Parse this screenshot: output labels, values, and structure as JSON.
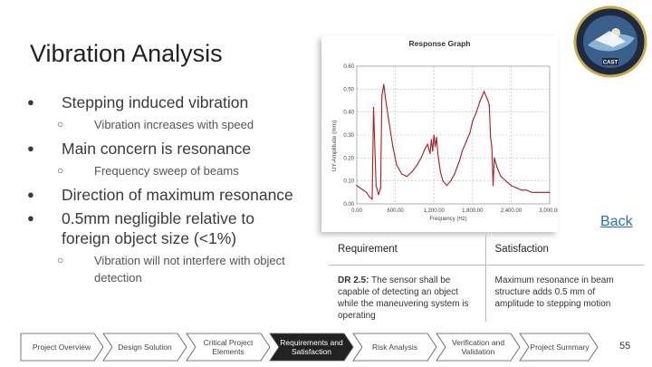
{
  "title": "Vibration Analysis",
  "bullets": [
    {
      "text": "Stepping induced vibration",
      "sub": [
        "Vibration increases with speed"
      ]
    },
    {
      "text": "Main concern is resonance",
      "sub": [
        "Frequency sweep of beams"
      ]
    },
    {
      "text": "Direction of maximum resonance",
      "sub": []
    },
    {
      "text": "0.5mm negligible relative to foreign object size (<1%)",
      "sub": [
        "Vibration will not interfere with object detection"
      ]
    }
  ],
  "chart": {
    "title": "Response Graph",
    "ylabel": "UY-Amplitude (mm)",
    "xlabel": "Frequency (Hz)",
    "yticks": [
      "0.60",
      "0.50",
      "0.40",
      "0.30",
      "0.20",
      "0.10",
      "0.00"
    ],
    "xticks": [
      "0.00",
      "600.00",
      "1,200.00",
      "1,800.00",
      "2,400.00",
      "3,000.00"
    ]
  },
  "chart_data": {
    "type": "line",
    "title": "Response Graph",
    "xlabel": "Frequency (Hz)",
    "ylabel": "UY-Amplitude (mm)",
    "xlim": [
      0,
      3000
    ],
    "ylim": [
      0,
      0.6
    ],
    "grid": true,
    "color": "#b01a1a",
    "series": [
      {
        "x": [
          0,
          50,
          100,
          150,
          200,
          240,
          260,
          300,
          340,
          370,
          390,
          420,
          450,
          500,
          560,
          620,
          700,
          780,
          860,
          940,
          1000,
          1060,
          1100,
          1140,
          1160,
          1180,
          1200,
          1220,
          1240,
          1260,
          1280,
          1300,
          1340,
          1400,
          1460,
          1520,
          1560,
          1600,
          1640,
          1700,
          1760,
          1800,
          1860,
          1920,
          1980,
          2040,
          2060,
          2080,
          2100,
          2120,
          2140,
          2180,
          2240,
          2320,
          2400,
          2480,
          2560,
          2640,
          2720,
          2800,
          2880,
          2960,
          3000
        ],
        "y": [
          0.08,
          0.07,
          0.06,
          0.05,
          0.03,
          0.02,
          0.42,
          0.08,
          0.04,
          0.07,
          0.47,
          0.52,
          0.45,
          0.36,
          0.25,
          0.17,
          0.13,
          0.12,
          0.14,
          0.17,
          0.2,
          0.24,
          0.26,
          0.22,
          0.28,
          0.23,
          0.3,
          0.25,
          0.29,
          0.22,
          0.18,
          0.14,
          0.1,
          0.08,
          0.1,
          0.13,
          0.16,
          0.19,
          0.23,
          0.27,
          0.31,
          0.36,
          0.4,
          0.45,
          0.49,
          0.45,
          0.43,
          0.29,
          0.25,
          0.08,
          0.2,
          0.16,
          0.12,
          0.1,
          0.08,
          0.07,
          0.06,
          0.06,
          0.05,
          0.05,
          0.05,
          0.05,
          0.05
        ]
      }
    ]
  },
  "back_link": "Back",
  "table": {
    "headers": [
      "Requirement",
      "Satisfaction"
    ],
    "row": {
      "req_id": "DR 2.5:",
      "req_text": " The sensor shall be capable of detecting an object while the maneuvering system is operating",
      "satisfaction": "Maximum resonance in beam structure adds 0.5 mm of amplitude to stepping motion"
    }
  },
  "nav": [
    {
      "label": "Project Overview",
      "active": false
    },
    {
      "label": "Design Solution",
      "active": false
    },
    {
      "label": "Critical Project Elements",
      "active": false
    },
    {
      "label": "Requirements and Satisfaction",
      "active": true
    },
    {
      "label": "Risk Analysis",
      "active": false
    },
    {
      "label": "Verification and Validation",
      "active": false
    },
    {
      "label": "Project Summary",
      "active": false
    }
  ],
  "page_number": "55",
  "colors": {
    "accent": "#222222",
    "link": "#2a6bc2",
    "line": "#b01a1a"
  }
}
